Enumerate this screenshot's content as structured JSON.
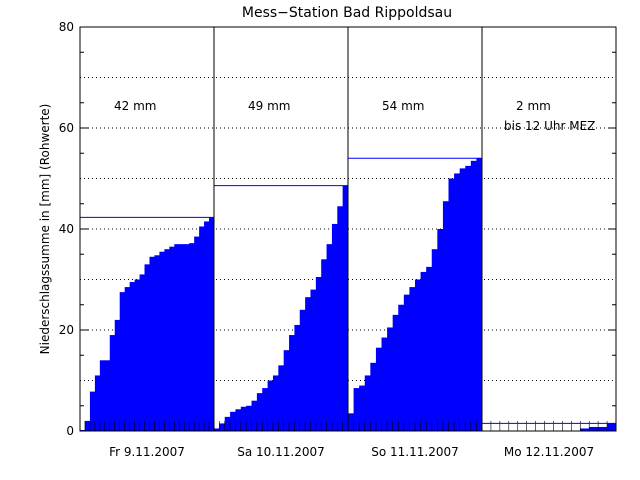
{
  "chart_data": {
    "type": "bar",
    "title": "Mess−Station Bad Rippoldsau",
    "ylabel": "Niederschlagssumme in [mm] (Rohwerte)",
    "xlabel": "",
    "ylim": [
      0,
      80
    ],
    "yticks": [
      0,
      20,
      40,
      60,
      80
    ],
    "grid": true,
    "bar_color": "#0000ff",
    "days": [
      {
        "label": "Fr 9.11.2007",
        "total_label": "42 mm",
        "note": "",
        "total": 42.3,
        "values": [
          0.2,
          2.0,
          7.8,
          11.0,
          14.0,
          14.0,
          19.0,
          22.0,
          27.5,
          28.5,
          29.5,
          30.0,
          31.0,
          33.0,
          34.5,
          34.8,
          35.5,
          36.0,
          36.5,
          37.0,
          37.0,
          37.0,
          37.2,
          38.5,
          40.5,
          41.5,
          42.3
        ]
      },
      {
        "label": "Sa 10.11.2007",
        "total_label": "49 mm",
        "note": "",
        "total": 48.6,
        "values": [
          0.5,
          1.5,
          2.8,
          3.8,
          4.3,
          4.8,
          5.0,
          6.0,
          7.5,
          8.5,
          10.0,
          11.0,
          13.0,
          16.0,
          19.0,
          21.0,
          24.0,
          26.5,
          28.0,
          30.5,
          34.0,
          37.0,
          41.0,
          44.5,
          48.6
        ]
      },
      {
        "label": "So 11.11.2007",
        "total_label": "54 mm",
        "note": "",
        "total": 54.0,
        "values": [
          3.5,
          8.5,
          9.0,
          11.0,
          13.5,
          16.5,
          18.5,
          20.5,
          23.0,
          25.0,
          27.0,
          28.5,
          30.0,
          31.5,
          32.5,
          36.0,
          40.0,
          45.5,
          50.0,
          51.0,
          52.0,
          52.5,
          53.5,
          54.0
        ]
      },
      {
        "label": "Mo 12.11.2007",
        "total_label": "2 mm",
        "note": "bis 12 Uhr MEZ",
        "total": 1.5,
        "values": [
          0.0,
          0.0,
          0.0,
          0.0,
          0.0,
          0.0,
          0.0,
          0.0,
          0.0,
          0.0,
          0.0,
          0.5,
          0.8,
          0.8,
          1.5
        ]
      }
    ]
  }
}
